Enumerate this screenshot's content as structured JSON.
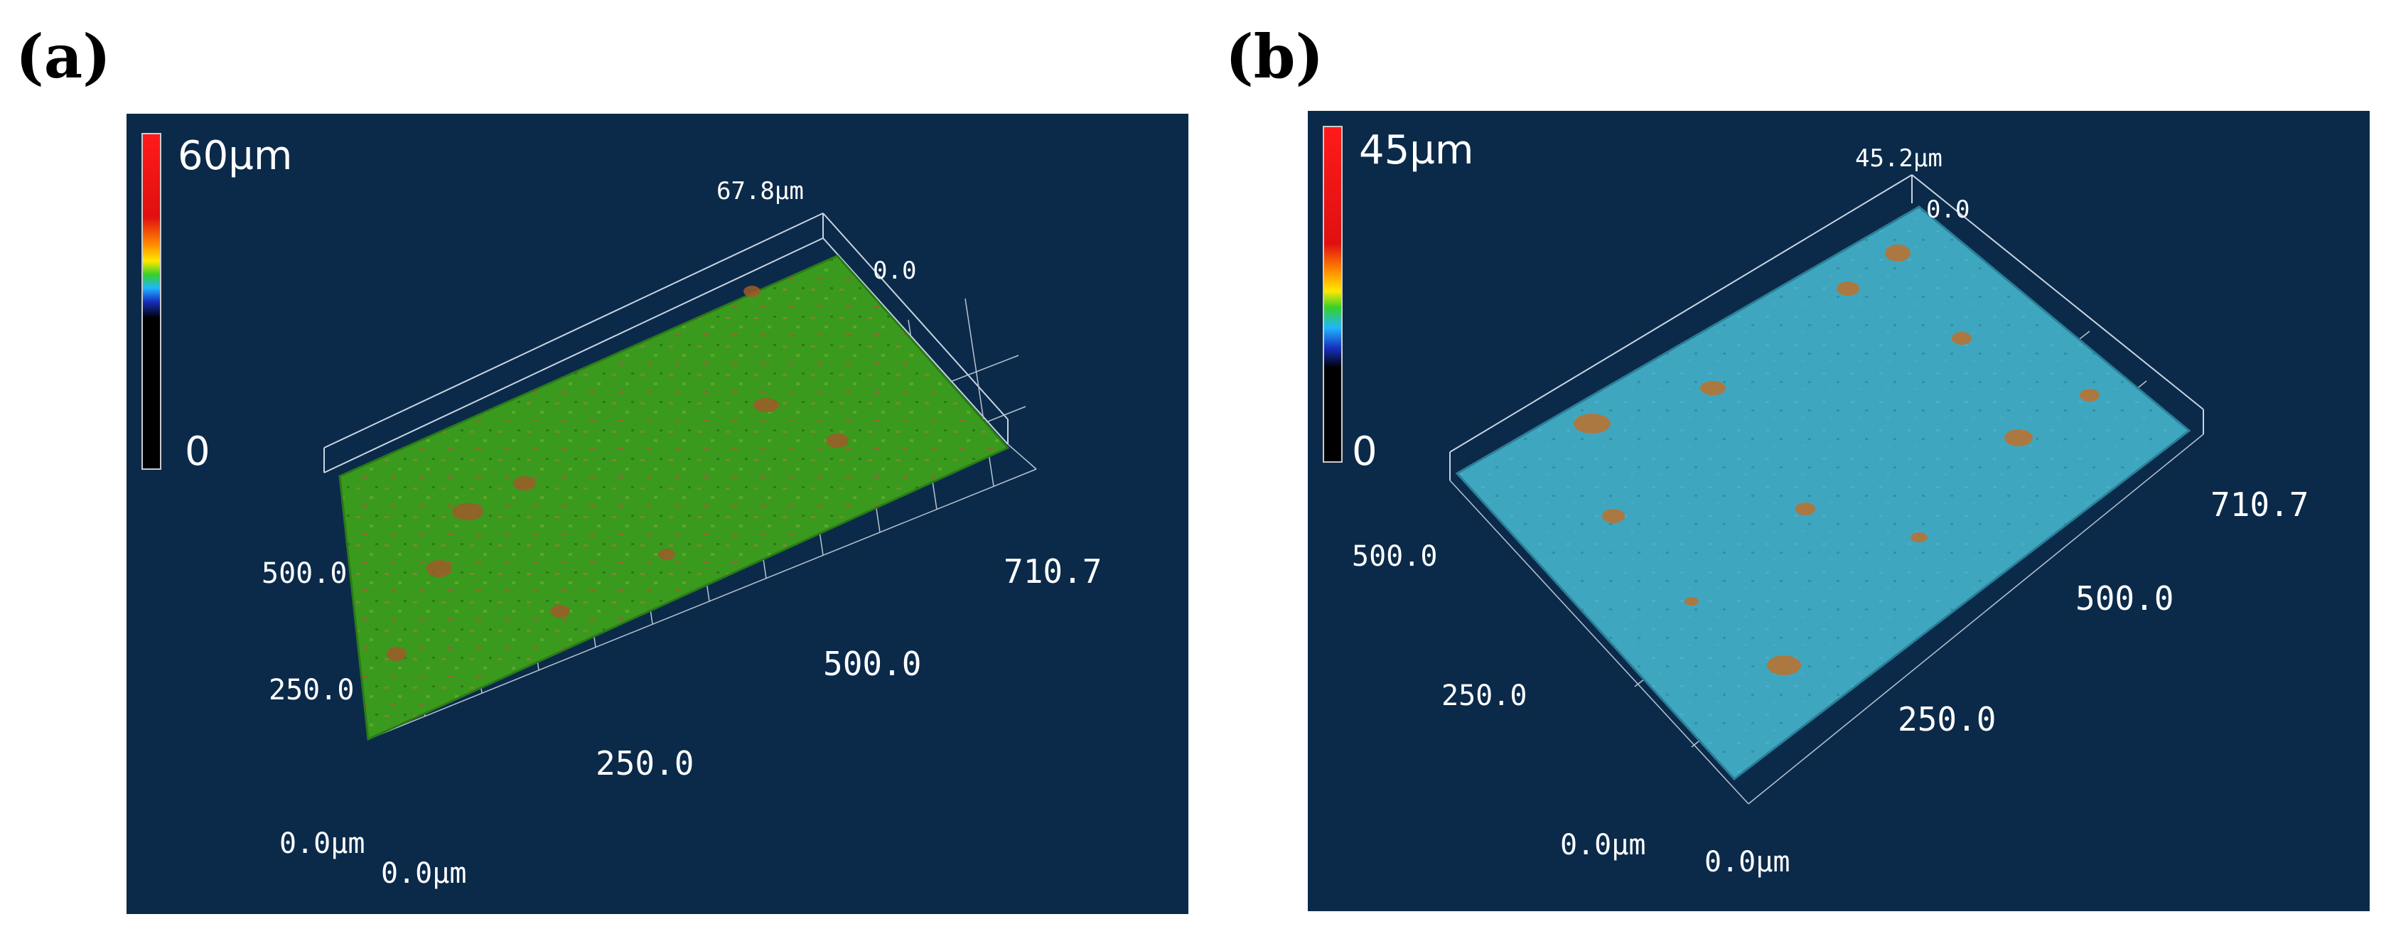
{
  "panels": [
    {
      "label": "(a)",
      "colorbar": {
        "max_label": "60µm",
        "min_label": "0"
      },
      "axes": {
        "z_max": "67.8µm",
        "z_min": "0.0",
        "x_end": "710.7",
        "x_mid": "500.0",
        "x_low": "250.0",
        "y_mid": "500.0",
        "y_low": "250.0",
        "origin_y": "0.0µm",
        "origin_x": "0.0µm"
      },
      "surface_color": "#3a9a1e"
    },
    {
      "label": "(b)",
      "colorbar": {
        "max_label": "45µm",
        "min_label": "0"
      },
      "axes": {
        "z_max": "45.2µm",
        "z_min": "0.0",
        "x_end": "710.7",
        "x_mid": "500.0",
        "x_low": "250.0",
        "y_mid": "500.0",
        "y_low": "250.0",
        "origin_y": "0.0µm",
        "origin_x": "0.0µm"
      },
      "surface_color": "#3fa6bf"
    }
  ]
}
